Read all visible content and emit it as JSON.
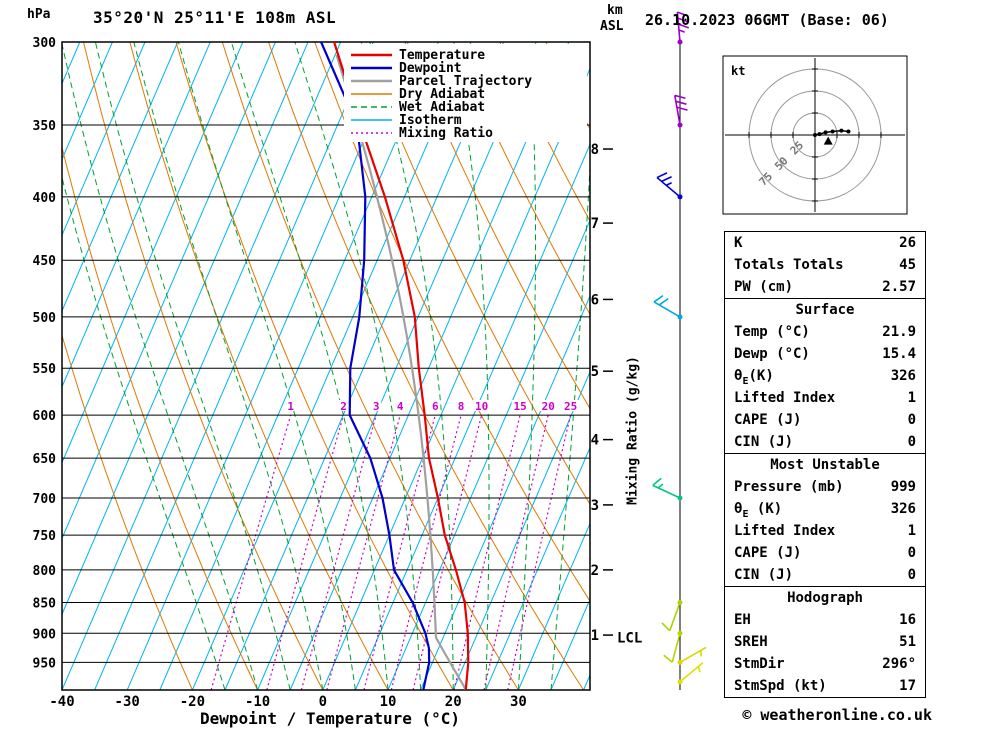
{
  "header": {
    "station": "35°20'N 25°11'E 108m ASL",
    "run": "26.10.2023 06GMT (Base: 06)"
  },
  "axes": {
    "pressure_unit": "hPa",
    "pressure_ticks": [
      300,
      350,
      400,
      450,
      500,
      550,
      600,
      650,
      700,
      750,
      800,
      850,
      900,
      950
    ],
    "temp_ticks": [
      -40,
      -30,
      -20,
      -10,
      0,
      10,
      20,
      30
    ],
    "xlabel": "Dewpoint / Temperature (°C)",
    "right_axis_km": "km",
    "right_axis_asl": "ASL",
    "km_ticks": [
      {
        "km": "8",
        "p": 366
      },
      {
        "km": "7",
        "p": 420
      },
      {
        "km": "6",
        "p": 484
      },
      {
        "km": "5",
        "p": 553
      },
      {
        "km": "4",
        "p": 628
      },
      {
        "km": "3",
        "p": 709
      },
      {
        "km": "2",
        "p": 800
      },
      {
        "km": "1",
        "p": 903
      }
    ],
    "mixing_label": "Mixing Ratio (g/kg)",
    "lcl_label": "LCL"
  },
  "legend": [
    {
      "label": "Temperature",
      "color": "#e60000",
      "dash": "",
      "width": 2.5
    },
    {
      "label": "Dewpoint",
      "color": "#0000cd",
      "dash": "",
      "width": 2.5
    },
    {
      "label": "Parcel Trajectory",
      "color": "#a0a0a0",
      "dash": "",
      "width": 2.5
    },
    {
      "label": "Dry Adiabat",
      "color": "#e07800",
      "dash": "",
      "width": 1.5
    },
    {
      "label": "Wet Adiabat",
      "color": "#00a030",
      "dash": "6,4",
      "width": 1.5
    },
    {
      "label": "Isotherm",
      "color": "#00b4f0",
      "dash": "",
      "width": 1.5
    },
    {
      "label": "Mixing Ratio",
      "color": "#cc00cc",
      "dash": "2,3",
      "width": 1.5
    }
  ],
  "chart_data": {
    "type": "skewt-log-p",
    "pressure_range_hPa": [
      300,
      1000
    ],
    "surface_temp_axis_range_C": [
      -40,
      41
    ],
    "temperature_profile": [
      [
        999,
        21.9
      ],
      [
        950,
        20.5
      ],
      [
        925,
        19.5
      ],
      [
        900,
        18.5
      ],
      [
        850,
        16.0
      ],
      [
        800,
        12.5
      ],
      [
        750,
        8.5
      ],
      [
        700,
        5.0
      ],
      [
        650,
        1.0
      ],
      [
        600,
        -2.5
      ],
      [
        550,
        -6.5
      ],
      [
        500,
        -10.5
      ],
      [
        450,
        -16.0
      ],
      [
        400,
        -23.0
      ],
      [
        350,
        -31.5
      ],
      [
        300,
        -41.0
      ]
    ],
    "dewpoint_profile": [
      [
        999,
        15.4
      ],
      [
        950,
        14.5
      ],
      [
        925,
        13.5
      ],
      [
        900,
        12.0
      ],
      [
        850,
        8.0
      ],
      [
        800,
        3.0
      ],
      [
        750,
        0.0
      ],
      [
        700,
        -3.5
      ],
      [
        650,
        -8.0
      ],
      [
        600,
        -14.0
      ],
      [
        550,
        -17.0
      ],
      [
        500,
        -19.0
      ],
      [
        450,
        -22.0
      ],
      [
        400,
        -26.0
      ],
      [
        350,
        -32.0
      ],
      [
        300,
        -43.0
      ]
    ],
    "parcel": {
      "surface_pressure": 999,
      "surface_temp": 21.9,
      "surface_dewpoint": 15.4
    },
    "mixing_ratio_lines_g_kg": [
      1,
      2,
      3,
      4,
      6,
      8,
      10,
      15,
      20,
      25
    ],
    "isotherm_step_C": 5,
    "dry_adiabat_step_K": 10,
    "wet_adiabat_starts_C": [
      -15,
      -10,
      -5,
      0,
      5,
      10,
      15,
      20,
      25,
      30,
      35
    ],
    "winds": [
      {
        "p": 300,
        "speed_kt": 35,
        "dir_deg": 355,
        "color": "#a000c8"
      },
      {
        "p": 350,
        "speed_kt": 30,
        "dir_deg": 350,
        "color": "#a000c8"
      },
      {
        "p": 400,
        "speed_kt": 25,
        "dir_deg": 310,
        "color": "#0000e0"
      },
      {
        "p": 500,
        "speed_kt": 20,
        "dir_deg": 300,
        "color": "#00a8e8"
      },
      {
        "p": 700,
        "speed_kt": 15,
        "dir_deg": 295,
        "color": "#00c87c"
      },
      {
        "p": 850,
        "speed_kt": 10,
        "dir_deg": 200,
        "color": "#a8d400"
      },
      {
        "p": 900,
        "speed_kt": 10,
        "dir_deg": 195,
        "color": "#b8d400"
      },
      {
        "p": 950,
        "speed_kt": 5,
        "dir_deg": 60,
        "color": "#d8d800"
      },
      {
        "p": 985,
        "speed_kt": 5,
        "dir_deg": 50,
        "color": "#e0e000"
      }
    ]
  },
  "hodograph": {
    "unit": "kt",
    "rings": [
      "25",
      "50",
      "75"
    ],
    "trace_kt": [
      [
        0,
        0
      ],
      [
        5,
        1
      ],
      [
        12,
        3
      ],
      [
        20,
        4
      ],
      [
        30,
        5
      ],
      [
        38,
        4
      ]
    ],
    "storm_motion_kt": [
      15,
      -7
    ]
  },
  "panel": {
    "sections": [
      {
        "name": "indices",
        "rows": [
          [
            "K",
            "26"
          ],
          [
            "Totals Totals",
            "45"
          ],
          [
            "PW (cm)",
            "2.57"
          ]
        ]
      },
      {
        "name": "surface",
        "header": "Surface",
        "rows": [
          [
            "Temp (°C)",
            "21.9"
          ],
          [
            "Dewp (°C)",
            "15.4"
          ],
          [
            "θ_E(K)",
            "326"
          ],
          [
            "Lifted Index",
            "1"
          ],
          [
            "CAPE (J)",
            "0"
          ],
          [
            "CIN (J)",
            "0"
          ]
        ]
      },
      {
        "name": "most-unstable",
        "header": "Most Unstable",
        "rows": [
          [
            "Pressure (mb)",
            "999"
          ],
          [
            "θ_E (K)",
            "326"
          ],
          [
            "Lifted Index",
            "1"
          ],
          [
            "CAPE (J)",
            "0"
          ],
          [
            "CIN (J)",
            "0"
          ]
        ]
      },
      {
        "name": "hodograph",
        "header": "Hodograph",
        "rows": [
          [
            "EH",
            "16"
          ],
          [
            "SREH",
            "51"
          ],
          [
            "StmDir",
            "296°"
          ],
          [
            "StmSpd (kt)",
            "17"
          ]
        ]
      }
    ]
  },
  "footer": {
    "copyright": "© weatheronline.co.uk"
  }
}
